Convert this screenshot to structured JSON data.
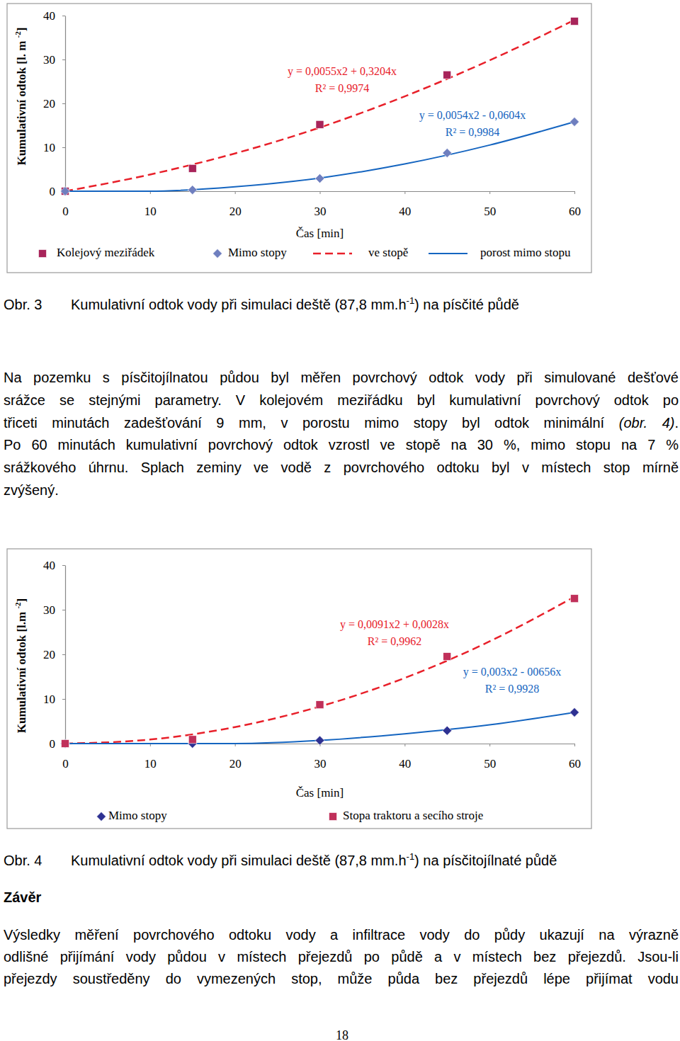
{
  "chart_data": [
    {
      "type": "line",
      "y_label": [
        "Kumulativní odtok [l. m ",
        "-2",
        "]"
      ],
      "x_label": "Čas [min]",
      "xlim": [
        0,
        60
      ],
      "xticks": [
        0,
        10,
        20,
        30,
        40,
        50,
        60
      ],
      "ylim": [
        0,
        40
      ],
      "yticks": [
        0,
        10,
        20,
        30,
        40
      ],
      "grid": false,
      "legend": "bottom",
      "series": [
        {
          "name": "Kolejový meziřádek",
          "type": "scatter",
          "marker": "square",
          "color": "#a8245a",
          "x": [
            0,
            15,
            30,
            45,
            60
          ],
          "values": [
            0,
            5.2,
            15.2,
            26.5,
            38.7
          ]
        },
        {
          "name": "Mimo stopy",
          "type": "scatter",
          "marker": "diamond",
          "color": "#6f7fbf",
          "x": [
            0,
            15,
            30,
            45,
            60
          ],
          "values": [
            0,
            0.3,
            2.9,
            8.7,
            15.8
          ]
        },
        {
          "name": "ve stopě",
          "type": "line",
          "line_style": "dashed",
          "color": "#e8202a",
          "x": [
            0,
            10,
            20,
            30,
            40,
            50,
            60
          ],
          "values": [
            0,
            3.8,
            8.6,
            14.5,
            21.6,
            29.8,
            39.0
          ]
        },
        {
          "name": "porost mimo stopu",
          "type": "line",
          "line_style": "solid",
          "color": "#1565c0",
          "x": [
            0,
            10,
            20,
            30,
            40,
            50,
            60
          ],
          "values": [
            0,
            0,
            1,
            3,
            6.2,
            10.5,
            15.8
          ]
        }
      ],
      "annotations": [
        {
          "text": "y = 0,0055x2 + 0,3204x",
          "color": "#e8202a"
        },
        {
          "text": "R² = 0,9974",
          "color": "#e8202a"
        },
        {
          "text": "y = 0,0054x2 - 0,0604x",
          "color": "#1565c0"
        },
        {
          "text": "R² = 0,9984",
          "color": "#1565c0"
        }
      ]
    },
    {
      "type": "line",
      "y_label": [
        "Kumulativní odtok [l.m ",
        "-2",
        "]"
      ],
      "x_label": "Čas [min]",
      "xlim": [
        0,
        60
      ],
      "xticks": [
        0,
        10,
        20,
        30,
        40,
        50,
        60
      ],
      "ylim": [
        0,
        40
      ],
      "yticks": [
        0,
        10,
        20,
        30,
        40
      ],
      "grid": false,
      "legend": "bottom",
      "series": [
        {
          "name": "Mimo stopy",
          "type": "scatter",
          "marker": "diamond",
          "color": "#2e3192",
          "x": [
            0,
            15,
            30,
            45,
            60
          ],
          "values": [
            0,
            0,
            0.7,
            2.9,
            7.0
          ]
        },
        {
          "name": "Stopa traktoru a secího stroje",
          "type": "scatter",
          "marker": "square",
          "color": "#c0305a",
          "x": [
            0,
            15,
            30,
            45,
            60
          ],
          "values": [
            0,
            0.9,
            8.7,
            19.5,
            32.5
          ]
        },
        {
          "type": "line",
          "line_style": "dashed",
          "color": "#e8202a",
          "x": [
            0,
            10,
            20,
            30,
            40,
            50,
            60
          ],
          "values": [
            0,
            0.9,
            3.7,
            8.3,
            14.7,
            22.9,
            32.9
          ]
        },
        {
          "type": "line",
          "line_style": "solid",
          "color": "#1565c0",
          "x": [
            0,
            10,
            20,
            30,
            40,
            50,
            60
          ],
          "values": [
            0,
            0,
            0,
            0.7,
            2.2,
            4.2,
            7.0
          ]
        }
      ],
      "annotations": [
        {
          "text": "y = 0,0091x2 + 0,0028x",
          "color": "#e8202a"
        },
        {
          "text": "R² = 0,9962",
          "color": "#e8202a"
        },
        {
          "text": "y = 0,003x2 - 00656x",
          "color": "#1565c0"
        },
        {
          "text": "R² = 0,9928",
          "color": "#1565c0"
        }
      ]
    }
  ],
  "document": {
    "captions": [
      {
        "label": "Obr. 3",
        "text": [
          "Kumulativní odtok vody při simulaci deště (87,8 mm.h",
          "-1",
          ") na písčité půdě"
        ]
      },
      {
        "label": "Obr. 4",
        "text": [
          "Kumulativní odtok vody při simulaci deště (87,8 mm.h",
          "-1",
          ") na písčitojílnaté půdě"
        ]
      }
    ],
    "paragraph": [
      [
        "Na pozemku s písčitojílnatou půdou byl měřen povrchový odtok vody při simulované dešťové"
      ],
      [
        "srážce se stejnými parametry. V kolejovém meziřádku byl kumulativní povrchový odtok po"
      ],
      [
        "třiceti minutách zadešťování 9 mm, v porostu mimo stopy byl odtok minimální ",
        {
          "text": "(obr. 4)",
          "em": true
        },
        "."
      ],
      [
        "Po 60 minutách kumulativní povrchový odtok vzrostl ve stopě na 30 %, mimo stopu na 7 %"
      ],
      [
        "srážkového úhrnu. Splach zeminy ve vodě z povrchového odtoku byl v místech stop mírně"
      ],
      [
        "zvýšený."
      ]
    ],
    "heading": "Závěr",
    "conclusion": [
      [
        "Výsledky měření povrchového odtoku vody a infiltrace vody do půdy ukazují na výrazně"
      ],
      [
        "odlišné přijímání vody půdou v místech přejezdů po půdě a v místech bez přejezdů. Jsou-li"
      ],
      [
        "přejezdy soustředěny do vymezených stop, může půda bez přejezdů lépe přijímat vodu"
      ]
    ],
    "page_number": 18
  }
}
